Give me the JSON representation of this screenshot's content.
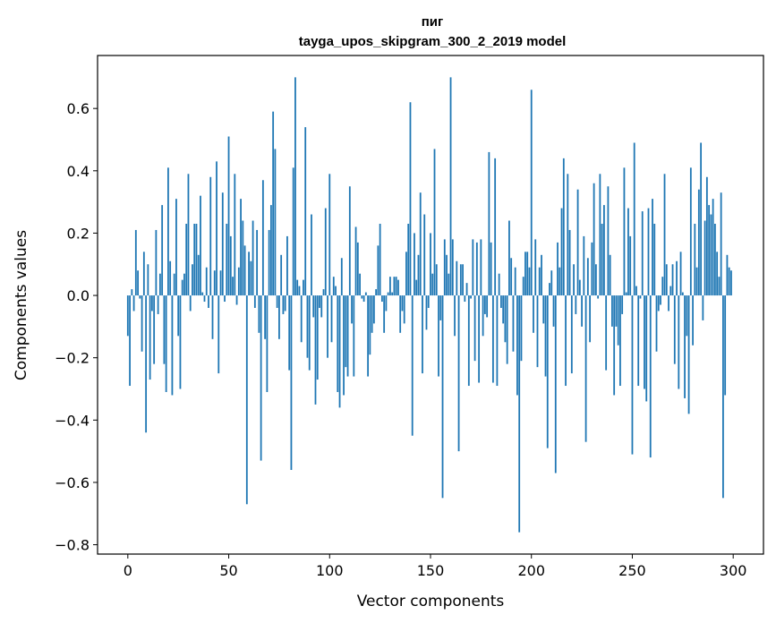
{
  "chart_data": {
    "type": "bar",
    "title_lines": [
      "пиг",
      "tayga_upos_skipgram_300_2_2019 model"
    ],
    "xlabel": "Vector components",
    "ylabel": "Components values",
    "xlim": [
      -15,
      315
    ],
    "ylim": [
      -0.83,
      0.77
    ],
    "x_ticks": [
      {
        "value": 0,
        "label": "0"
      },
      {
        "value": 50,
        "label": "50"
      },
      {
        "value": 100,
        "label": "100"
      },
      {
        "value": 150,
        "label": "150"
      },
      {
        "value": 200,
        "label": "200"
      },
      {
        "value": 250,
        "label": "250"
      },
      {
        "value": 300,
        "label": "300"
      }
    ],
    "y_ticks": [
      {
        "value": 0.6,
        "label": "0.6"
      },
      {
        "value": 0.4,
        "label": "0.4"
      },
      {
        "value": 0.2,
        "label": "0.2"
      },
      {
        "value": 0.0,
        "label": "0.0"
      },
      {
        "value": -0.2,
        "label": "−0.2"
      },
      {
        "value": -0.4,
        "label": "−0.4"
      },
      {
        "value": -0.6,
        "label": "−0.6"
      },
      {
        "value": -0.8,
        "label": "−0.8"
      }
    ],
    "bar_color": "#1f77b4",
    "values": [
      -0.13,
      -0.29,
      0.02,
      -0.05,
      0.21,
      0.08,
      -0.01,
      -0.18,
      0.14,
      -0.44,
      0.1,
      -0.27,
      -0.05,
      -0.22,
      0.21,
      -0.06,
      0.07,
      0.29,
      -0.22,
      -0.31,
      0.41,
      0.11,
      -0.32,
      0.07,
      0.31,
      -0.13,
      -0.3,
      0.05,
      0.07,
      0.23,
      0.39,
      -0.05,
      0.1,
      0.23,
      0.23,
      0.13,
      0.32,
      0.01,
      -0.02,
      0.09,
      -0.04,
      0.38,
      -0.14,
      0.08,
      0.43,
      -0.25,
      0.08,
      0.33,
      -0.02,
      0.23,
      0.51,
      0.19,
      0.06,
      0.39,
      -0.03,
      0.09,
      0.31,
      0.24,
      0.16,
      -0.67,
      0.14,
      0.11,
      0.24,
      -0.04,
      0.21,
      -0.12,
      -0.53,
      0.37,
      -0.14,
      -0.31,
      0.21,
      0.29,
      0.59,
      0.47,
      -0.04,
      -0.14,
      0.13,
      -0.06,
      -0.05,
      0.19,
      -0.24,
      -0.56,
      0.41,
      0.7,
      0.05,
      0.03,
      -0.15,
      0.05,
      0.54,
      -0.2,
      -0.24,
      0.26,
      -0.07,
      -0.35,
      -0.27,
      -0.04,
      -0.07,
      0.02,
      0.28,
      -0.2,
      0.39,
      -0.15,
      0.06,
      0.03,
      -0.31,
      -0.36,
      0.12,
      -0.32,
      -0.23,
      -0.26,
      0.35,
      -0.09,
      -0.26,
      0.22,
      0.17,
      0.07,
      -0.01,
      -0.02,
      0.01,
      -0.26,
      -0.19,
      -0.12,
      -0.09,
      0.02,
      0.16,
      0.23,
      -0.02,
      -0.12,
      -0.05,
      0.01,
      0.06,
      0.01,
      0.06,
      0.06,
      0.05,
      -0.12,
      -0.05,
      -0.09,
      0.14,
      0.23,
      0.62,
      -0.45,
      0.2,
      0.05,
      0.13,
      0.33,
      -0.25,
      0.26,
      -0.11,
      -0.04,
      0.2,
      0.07,
      0.47,
      0.1,
      -0.26,
      -0.08,
      -0.65,
      0.18,
      0.13,
      0.07,
      0.7,
      0.18,
      -0.13,
      0.11,
      -0.5,
      0.1,
      0.1,
      -0.02,
      0.04,
      -0.29,
      -0.01,
      0.18,
      -0.21,
      0.17,
      -0.28,
      0.18,
      -0.13,
      -0.06,
      -0.07,
      0.46,
      0.17,
      -0.28,
      0.44,
      -0.29,
      0.07,
      -0.04,
      -0.09,
      -0.15,
      -0.22,
      0.24,
      0.12,
      -0.18,
      0.09,
      -0.32,
      -0.76,
      -0.21,
      0.06,
      0.14,
      0.14,
      0.09,
      0.66,
      -0.12,
      0.18,
      -0.23,
      0.09,
      0.13,
      -0.09,
      -0.26,
      -0.49,
      0.04,
      0.08,
      -0.1,
      -0.57,
      0.17,
      0.09,
      0.28,
      0.44,
      -0.29,
      0.39,
      0.21,
      -0.25,
      0.1,
      -0.06,
      0.34,
      0.05,
      -0.1,
      0.19,
      -0.47,
      0.12,
      -0.15,
      0.17,
      0.36,
      0.1,
      -0.01,
      0.39,
      0.23,
      0.29,
      -0.24,
      0.35,
      0.13,
      -0.1,
      -0.32,
      -0.1,
      -0.16,
      -0.29,
      -0.06,
      0.41,
      0.01,
      0.28,
      0.19,
      -0.51,
      0.49,
      0.03,
      -0.29,
      -0.01,
      0.27,
      -0.3,
      -0.34,
      0.28,
      -0.52,
      0.31,
      0.23,
      -0.18,
      -0.05,
      -0.03,
      0.06,
      0.39,
      0.1,
      -0.05,
      0.03,
      0.1,
      -0.22,
      0.11,
      -0.3,
      0.14,
      0.01,
      -0.33,
      -0.13,
      -0.38,
      0.41,
      -0.16,
      0.23,
      0.09,
      0.34,
      0.49,
      -0.08,
      0.24,
      0.38,
      0.29,
      0.26,
      0.31,
      0.23,
      0.14,
      0.06,
      0.33,
      -0.65,
      -0.32,
      0.13,
      0.09,
      0.08
    ]
  }
}
